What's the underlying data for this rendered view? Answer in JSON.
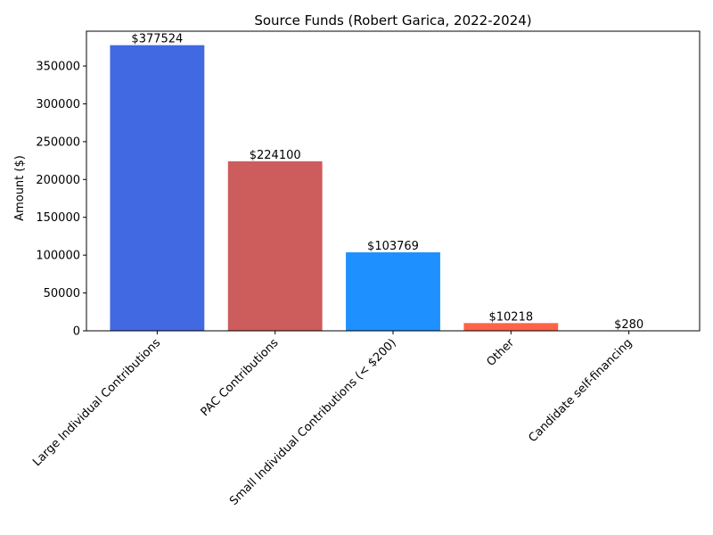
{
  "chart_data": {
    "type": "bar",
    "title": "Source Funds (Robert Garica, 2022-2024)",
    "xlabel": "",
    "ylabel": "Amount ($)",
    "ylim": [
      0,
      396000
    ],
    "yticks": [
      0,
      50000,
      100000,
      150000,
      200000,
      250000,
      300000,
      350000
    ],
    "categories": [
      "Large Individual Contributions",
      "PAC Contributions",
      "Small Individual Contributions (< $200)",
      "Other",
      "Candidate self-financing"
    ],
    "values": [
      377524,
      224100,
      103769,
      10218,
      280
    ],
    "data_labels": [
      "$377524",
      "$224100",
      "$103769",
      "$10218",
      "$280"
    ],
    "colors": [
      "#4169e1",
      "#cd5c5c",
      "#1e90ff",
      "#ff6347",
      "#228b22"
    ],
    "grid": false,
    "legend": "none"
  }
}
